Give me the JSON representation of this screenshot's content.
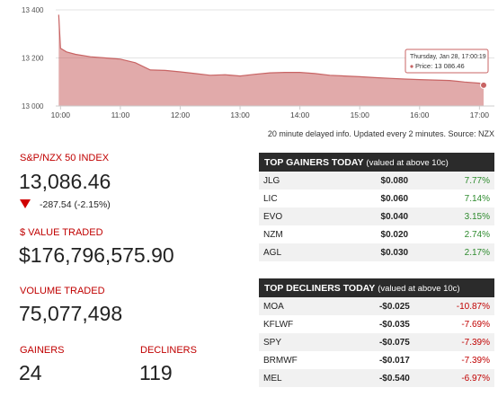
{
  "chart_data": {
    "type": "area",
    "x": [
      9.97,
      10.0,
      10.1,
      10.25,
      10.5,
      10.75,
      11,
      11.25,
      11.5,
      11.75,
      12,
      12.25,
      12.5,
      12.75,
      13,
      13.25,
      13.5,
      13.75,
      14,
      14.25,
      14.5,
      14.75,
      15,
      15.25,
      15.5,
      15.75,
      16,
      16.25,
      16.5,
      16.75,
      17,
      17.07
    ],
    "series": [
      {
        "color": "#c86464",
        "values": [
          13380,
          13240,
          13225,
          13215,
          13205,
          13200,
          13195,
          13180,
          13150,
          13148,
          13142,
          13135,
          13128,
          13130,
          13125,
          13132,
          13138,
          13140,
          13140,
          13135,
          13128,
          13125,
          13122,
          13118,
          13115,
          13112,
          13110,
          13108,
          13106,
          13100,
          13095,
          13086.46
        ]
      }
    ],
    "xlim": [
      9.92,
      17.25
    ],
    "xticks": [
      {
        "value": 10,
        "label": "10:00"
      },
      {
        "value": 11,
        "label": "11:00"
      },
      {
        "value": 12,
        "label": "12:00"
      },
      {
        "value": 13,
        "label": "13:00"
      },
      {
        "value": 14,
        "label": "14:00"
      },
      {
        "value": 15,
        "label": "15:00"
      },
      {
        "value": 16,
        "label": "16:00"
      },
      {
        "value": 17,
        "label": "17:00"
      }
    ],
    "ylim": [
      13000,
      13400
    ],
    "yticks": [
      {
        "value": 13000,
        "label": "13 000"
      },
      {
        "value": 13200,
        "label": "13 200"
      },
      {
        "value": 13400,
        "label": "13 400"
      }
    ],
    "grid": true,
    "tooltip": {
      "title": "Thursday, Jan 28, 17:00:19",
      "label": "Price: 13 086.46"
    },
    "note": "20 minute delayed info. Updated every 2 minutes. Source: NZX"
  },
  "stats": {
    "index_label": "S&P/NZX 50 INDEX",
    "index_value": "13,086.46",
    "index_change": "-287.54 (-2.15%)",
    "value_label": "$ VALUE TRADED",
    "value_traded": "$176,796,575.90",
    "volume_label": "VOLUME TRADED",
    "volume_traded": "75,077,498",
    "gainers_label": "GAINERS",
    "gainers": 24,
    "decliners_label": "DECLINERS",
    "decliners": 119
  },
  "gainers_table": {
    "title": "TOP GAINERS TODAY",
    "subtitle": "(valued at above 10c)",
    "rows": [
      [
        "JLG",
        "$0.080",
        "7.77%"
      ],
      [
        "LIC",
        "$0.060",
        "7.14%"
      ],
      [
        "EVO",
        "$0.040",
        "3.15%"
      ],
      [
        "NZM",
        "$0.020",
        "2.74%"
      ],
      [
        "AGL",
        "$0.030",
        "2.17%"
      ]
    ]
  },
  "decliners_table": {
    "title": "TOP DECLINERS TODAY",
    "subtitle": "(valued at above 10c)",
    "rows": [
      [
        "MOA",
        "-$0.025",
        "-10.87%"
      ],
      [
        "KFLWF",
        "-$0.035",
        "-7.69%"
      ],
      [
        "SPY",
        "-$0.075",
        "-7.39%"
      ],
      [
        "BRMWF",
        "-$0.017",
        "-7.39%"
      ],
      [
        "MEL",
        "-$0.540",
        "-6.97%"
      ]
    ]
  }
}
